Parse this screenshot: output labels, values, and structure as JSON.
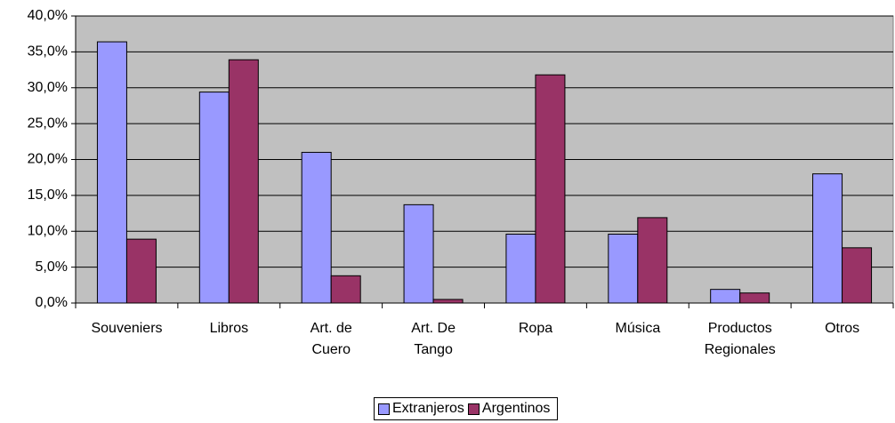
{
  "chart_data": {
    "type": "bar",
    "categories": [
      "Souveniers",
      "Libros",
      "Art. de\nCuero",
      "Art. De\nTango",
      "Ropa",
      "Música",
      "Productos\nRegionales",
      "Otros"
    ],
    "series": [
      {
        "name": "Extranjeros",
        "color": "#9999ff",
        "values": [
          36.4,
          29.4,
          21.0,
          13.7,
          9.6,
          9.6,
          1.9,
          18.0
        ]
      },
      {
        "name": "Argentinos",
        "color": "#993366",
        "values": [
          8.9,
          33.9,
          3.8,
          0.5,
          31.8,
          11.9,
          1.4,
          7.7
        ]
      }
    ],
    "ylim": [
      0,
      40
    ],
    "yticks": [
      {
        "value": 0,
        "label": "0,0%"
      },
      {
        "value": 5,
        "label": "5,0%"
      },
      {
        "value": 10,
        "label": "10,0%"
      },
      {
        "value": 15,
        "label": "15,0%"
      },
      {
        "value": 20,
        "label": "20,0%"
      },
      {
        "value": 25,
        "label": "25,0%"
      },
      {
        "value": 30,
        "label": "30,0%"
      },
      {
        "value": 35,
        "label": "35,0%"
      },
      {
        "value": 40,
        "label": "40,0%"
      }
    ],
    "grid": true,
    "legend": "bottom"
  }
}
